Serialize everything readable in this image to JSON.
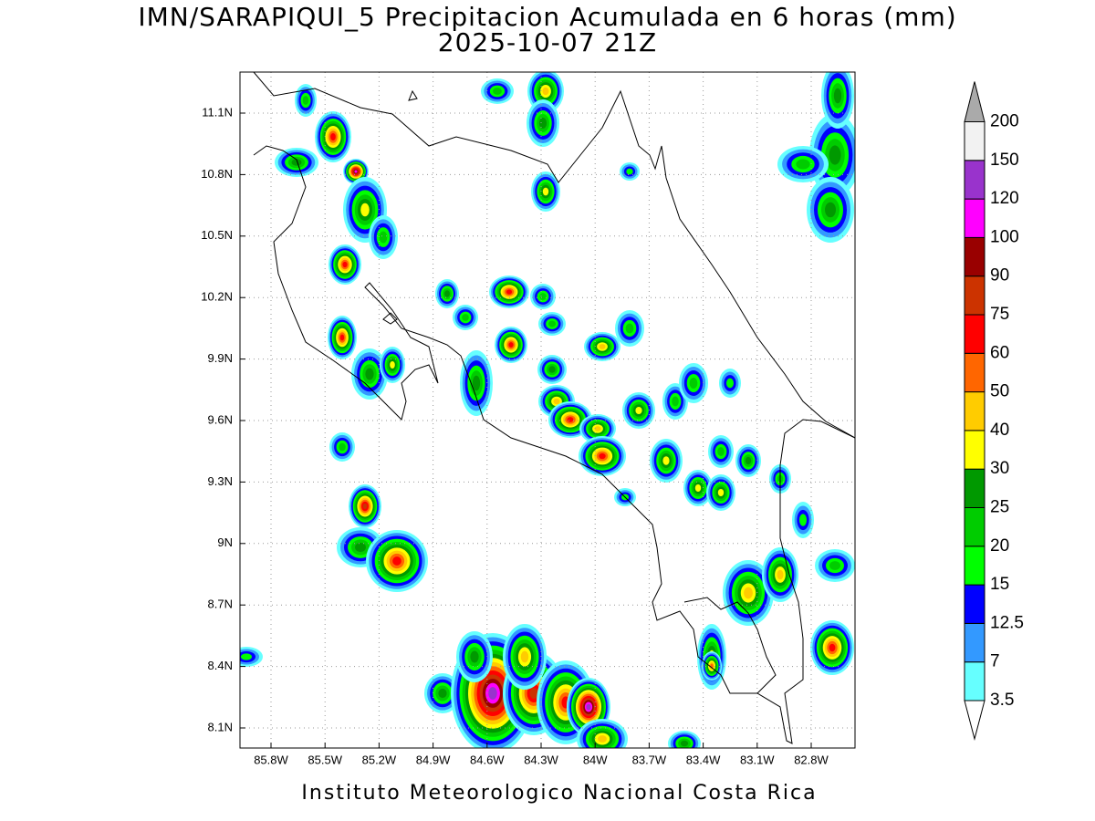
{
  "title": "IMN/SARAPIQUI_5 Precipitacion Acumulada en 6 horas (mm)",
  "subtitle": "2025-10-07 21Z",
  "map": {
    "lon_ticks": [
      "85.8W",
      "85.5W",
      "85.2W",
      "84.9W",
      "84.6W",
      "84.3W",
      "84W",
      "83.7W",
      "83.4W",
      "83.1W",
      "82.8W"
    ],
    "lat_ticks": [
      "11.1N",
      "10.8N",
      "10.5N",
      "10.2N",
      "9.9N",
      "9.6N",
      "9.3N",
      "9N",
      "8.7N",
      "8.4N",
      "8.1N"
    ]
  },
  "colorbar": {
    "levels": [
      "3.5",
      "7",
      "12.5",
      "15",
      "20",
      "25",
      "30",
      "40",
      "50",
      "60",
      "75",
      "90",
      "100",
      "120",
      "150",
      "200"
    ],
    "colors": [
      "#ffffff",
      "#66ffff",
      "#3399ff",
      "#0000ff",
      "#00ff00",
      "#00cc00",
      "#009900",
      "#ffff00",
      "#ffcc00",
      "#ff6600",
      "#ff0000",
      "#cc3300",
      "#990000",
      "#ff00ff",
      "#9933cc",
      "#f2f2f2",
      "#aaaaaa"
    ]
  },
  "footer": "Instituto Meteorologico Nacional Costa Rica"
}
